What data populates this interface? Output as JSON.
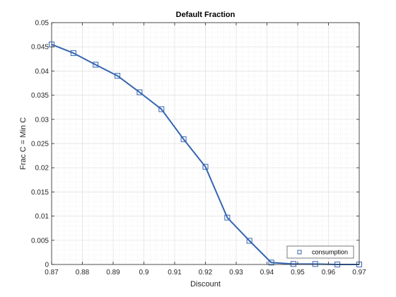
{
  "chart_data": {
    "type": "line",
    "title": "Default Fraction",
    "xlabel": "Discount",
    "ylabel": "Frac C = Min C",
    "xlim": [
      0.87,
      0.97
    ],
    "ylim": [
      0,
      0.05
    ],
    "x_ticks": [
      "0.87",
      "0.88",
      "0.89",
      "0.9",
      "0.91",
      "0.92",
      "0.93",
      "0.94",
      "0.95",
      "0.96",
      "0.97"
    ],
    "y_ticks": [
      "0",
      "0.005",
      "0.01",
      "0.015",
      "0.02",
      "0.025",
      "0.03",
      "0.035",
      "0.04",
      "0.045",
      "0.05"
    ],
    "grid": true,
    "minor_grid": true,
    "legend_position": "bottom-right",
    "series": [
      {
        "name": "consumption",
        "marker": "square",
        "color": "#3565b2",
        "x": [
          0.87,
          0.8771,
          0.8843,
          0.8914,
          0.8986,
          0.9057,
          0.9129,
          0.92,
          0.9271,
          0.9343,
          0.9414,
          0.9486,
          0.9557,
          0.9629,
          0.97
        ],
        "y": [
          0.0455,
          0.0437,
          0.0413,
          0.039,
          0.0356,
          0.0321,
          0.0259,
          0.0202,
          0.0097,
          0.0049,
          0.0004,
          0.0001,
          0.0001,
          0.0,
          0.0
        ]
      }
    ]
  }
}
